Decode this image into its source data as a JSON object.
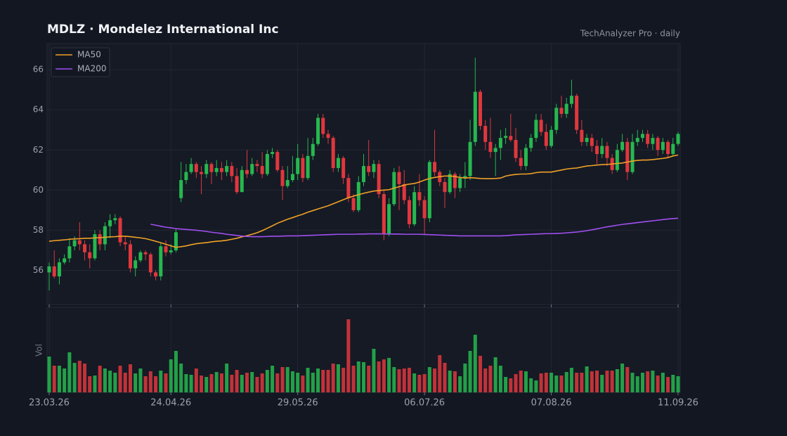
{
  "chart_data": {
    "type": "candlestick",
    "title": "MDLZ  ·  Mondelez International Inc",
    "subtitle": "TechAnalyzer Pro · daily",
    "categories": [
      "23.03.26",
      null,
      null,
      null,
      null,
      null,
      null,
      null,
      null,
      null,
      null,
      null,
      null,
      null,
      null,
      null,
      null,
      null,
      null,
      null,
      null,
      null,
      null,
      null,
      "24.04.26",
      null,
      null,
      null,
      null,
      null,
      null,
      null,
      null,
      null,
      null,
      null,
      null,
      null,
      null,
      null,
      null,
      null,
      null,
      null,
      null,
      null,
      null,
      null,
      null,
      "29.05.26",
      null,
      null,
      null,
      null,
      null,
      null,
      null,
      null,
      null,
      null,
      null,
      null,
      null,
      null,
      null,
      null,
      null,
      null,
      null,
      null,
      null,
      null,
      null,
      null,
      "06.07.26",
      null,
      null,
      null,
      null,
      null,
      null,
      null,
      null,
      null,
      null,
      null,
      null,
      null,
      null,
      null,
      null,
      null,
      null,
      null,
      null,
      null,
      null,
      null,
      null,
      "07.08.26",
      null,
      null,
      null,
      null,
      null,
      null,
      null,
      null,
      null,
      null,
      null,
      null,
      null,
      null,
      null,
      null,
      null,
      null,
      null,
      null,
      null,
      null,
      null,
      null,
      "11.09.26"
    ],
    "open": [
      55.9,
      56.2,
      55.7,
      56.4,
      56.6,
      57.2,
      57.5,
      57.3,
      56.9,
      56.6,
      57.8,
      57.3,
      58.2,
      58.5,
      58.6,
      57.4,
      57.3,
      56.1,
      56.5,
      56.9,
      56.8,
      55.9,
      55.7,
      57.2,
      56.9,
      57.0,
      59.6,
      60.5,
      60.9,
      61.3,
      60.9,
      60.8,
      61.3,
      60.9,
      61.1,
      60.9,
      61.2,
      60.7,
      59.9,
      61.0,
      60.8,
      61.3,
      61.2,
      60.8,
      61.8,
      61.9,
      61.0,
      60.2,
      60.5,
      60.8,
      61.6,
      60.6,
      61.7,
      62.3,
      63.6,
      62.8,
      62.6,
      61.1,
      61.6,
      60.6,
      59.6,
      59.0,
      60.4,
      61.2,
      60.9,
      61.3,
      59.8,
      57.8,
      59.3,
      60.9,
      60.3,
      59.5,
      58.3,
      59.9,
      59.5,
      58.6,
      61.4,
      60.9,
      60.4,
      59.9,
      60.8,
      60.1,
      60.6,
      60.7,
      62.4,
      64.9,
      63.2,
      62.4,
      61.9,
      62.1,
      62.6,
      62.7,
      62.5,
      61.6,
      61.2,
      62.1,
      62.6,
      63.5,
      62.9,
      62.2,
      63.0,
      64.1,
      63.8,
      64.3,
      64.7,
      63.0,
      62.4,
      62.6,
      62.2,
      61.8,
      62.2,
      61.6,
      61.0,
      62.0,
      62.4,
      60.9,
      62.4,
      62.6,
      62.8,
      62.3,
      62.6,
      62.0,
      62.4,
      61.8,
      62.3
    ],
    "high": [
      56.4,
      57.0,
      56.6,
      56.8,
      57.6,
      57.7,
      58.4,
      57.5,
      57.3,
      58.0,
      58.0,
      58.4,
      58.8,
      58.8,
      58.7,
      57.7,
      57.5,
      56.7,
      57.0,
      57.0,
      56.9,
      56.0,
      57.4,
      57.5,
      57.3,
      58.1,
      61.4,
      61.3,
      61.6,
      61.4,
      61.2,
      61.5,
      61.4,
      61.5,
      61.4,
      61.5,
      61.4,
      61.1,
      61.2,
      62.0,
      61.6,
      61.5,
      61.9,
      62.0,
      62.1,
      62.0,
      61.2,
      61.2,
      61.7,
      62.3,
      61.8,
      62.6,
      62.6,
      63.8,
      63.8,
      63.0,
      62.7,
      61.8,
      61.7,
      60.8,
      59.8,
      60.7,
      61.8,
      62.5,
      61.5,
      61.5,
      60.0,
      59.6,
      61.1,
      61.2,
      61.0,
      59.7,
      60.2,
      60.8,
      59.7,
      61.5,
      63.0,
      61.0,
      60.6,
      61.0,
      60.9,
      60.8,
      61.4,
      63.5,
      66.6,
      65.0,
      63.5,
      63.6,
      62.3,
      63.0,
      63.1,
      63.8,
      63.1,
      62.0,
      62.3,
      62.8,
      63.8,
      63.8,
      63.3,
      63.2,
      64.3,
      64.7,
      64.6,
      65.5,
      64.8,
      63.5,
      62.8,
      62.8,
      62.5,
      62.6,
      62.4,
      61.8,
      62.3,
      62.8,
      62.6,
      62.8,
      63.0,
      63.0,
      63.0,
      62.8,
      62.7,
      62.6,
      62.5,
      62.6,
      62.9
    ],
    "low": [
      55.0,
      55.6,
      55.3,
      56.3,
      56.4,
      57.0,
      57.0,
      56.5,
      56.1,
      56.5,
      57.0,
      57.0,
      57.6,
      58.3,
      57.2,
      57.0,
      55.9,
      55.7,
      56.4,
      56.5,
      55.7,
      55.5,
      55.5,
      56.7,
      56.8,
      56.9,
      59.4,
      60.3,
      60.8,
      60.6,
      59.8,
      60.6,
      60.3,
      60.7,
      60.5,
      60.7,
      60.4,
      59.8,
      59.9,
      60.6,
      60.7,
      60.9,
      60.6,
      60.7,
      61.6,
      60.9,
      59.5,
      60.1,
      60.4,
      60.5,
      60.4,
      60.5,
      61.5,
      62.2,
      62.6,
      62.3,
      60.9,
      60.9,
      60.3,
      59.4,
      58.9,
      58.9,
      60.2,
      60.7,
      60.6,
      59.6,
      57.5,
      57.7,
      59.2,
      59.0,
      59.3,
      58.1,
      58.2,
      59.2,
      57.8,
      58.4,
      60.7,
      60.2,
      59.1,
      59.8,
      59.6,
      59.9,
      60.1,
      60.5,
      62.2,
      63.0,
      62.0,
      61.6,
      60.7,
      61.5,
      62.3,
      62.4,
      61.4,
      61.0,
      61.0,
      61.9,
      62.4,
      62.7,
      62.0,
      62.1,
      62.8,
      63.6,
      63.6,
      64.1,
      62.8,
      62.2,
      62.2,
      61.9,
      61.3,
      61.6,
      61.2,
      60.8,
      60.9,
      61.9,
      60.5,
      60.8,
      62.2,
      62.4,
      62.1,
      62.0,
      61.7,
      61.8,
      61.6,
      61.7,
      62.2
    ],
    "close": [
      56.2,
      55.7,
      56.4,
      56.6,
      57.2,
      57.5,
      57.3,
      56.9,
      56.6,
      57.8,
      57.3,
      58.2,
      58.5,
      58.6,
      57.4,
      57.3,
      56.1,
      56.5,
      56.9,
      56.8,
      55.9,
      55.7,
      57.2,
      56.9,
      57.0,
      57.9,
      60.5,
      60.9,
      61.3,
      60.9,
      60.8,
      61.3,
      60.9,
      61.1,
      60.9,
      61.2,
      60.7,
      59.9,
      61.0,
      60.8,
      61.3,
      61.2,
      60.8,
      61.8,
      61.9,
      61.0,
      60.2,
      60.5,
      60.8,
      61.6,
      60.6,
      61.7,
      62.3,
      63.6,
      62.8,
      62.6,
      61.1,
      61.6,
      60.6,
      59.6,
      59.0,
      60.4,
      61.2,
      60.9,
      61.3,
      59.8,
      57.8,
      59.3,
      60.9,
      60.3,
      59.5,
      58.3,
      59.9,
      59.5,
      58.6,
      61.4,
      60.9,
      60.4,
      59.9,
      60.8,
      60.1,
      60.6,
      60.7,
      62.4,
      64.9,
      63.2,
      62.4,
      61.9,
      62.1,
      62.6,
      62.7,
      62.5,
      61.6,
      61.2,
      62.1,
      62.6,
      63.5,
      62.9,
      62.2,
      63.0,
      64.1,
      63.8,
      64.3,
      64.7,
      63.0,
      62.4,
      62.6,
      62.2,
      61.8,
      62.2,
      61.6,
      61.0,
      62.0,
      62.4,
      60.9,
      62.4,
      62.6,
      62.8,
      62.3,
      62.6,
      62.0,
      62.4,
      61.8,
      62.3,
      62.8
    ],
    "up_color": "#26b84f",
    "down_color": "#e0373d",
    "series": [
      {
        "name": "MA50",
        "color": "#f0a126",
        "values": [
          57.45,
          57.48,
          57.5,
          57.52,
          57.55,
          57.57,
          57.58,
          57.6,
          57.6,
          57.62,
          57.63,
          57.65,
          57.67,
          57.68,
          57.7,
          57.7,
          57.68,
          57.65,
          57.62,
          57.58,
          57.52,
          57.45,
          57.38,
          57.3,
          57.22,
          57.15,
          57.18,
          57.22,
          57.28,
          57.33,
          57.36,
          57.38,
          57.42,
          57.45,
          57.47,
          57.5,
          57.55,
          57.6,
          57.67,
          57.73,
          57.8,
          57.88,
          57.98,
          58.1,
          58.22,
          58.35,
          58.45,
          58.55,
          58.63,
          58.72,
          58.8,
          58.9,
          58.98,
          59.06,
          59.14,
          59.22,
          59.32,
          59.42,
          59.52,
          59.62,
          59.7,
          59.77,
          59.84,
          59.9,
          59.95,
          59.98,
          60.0,
          60.02,
          60.1,
          60.17,
          60.25,
          60.3,
          60.33,
          60.4,
          60.5,
          60.58,
          60.63,
          60.67,
          60.7,
          60.7,
          60.68,
          60.63,
          60.6,
          60.62,
          60.6,
          60.58,
          60.57,
          60.57,
          60.58,
          60.6,
          60.7,
          60.75,
          60.78,
          60.8,
          60.8,
          60.82,
          60.87,
          60.9,
          60.9,
          60.9,
          60.95,
          61.0,
          61.05,
          61.08,
          61.1,
          61.15,
          61.2,
          61.22,
          61.25,
          61.27,
          61.28,
          61.3,
          61.33,
          61.35,
          61.4,
          61.45,
          61.48,
          61.5,
          61.5,
          61.52,
          61.55,
          61.58,
          61.62,
          61.7,
          61.75
        ]
      },
      {
        "name": "MA200",
        "color": "#a04ff0",
        "values": [
          null,
          null,
          null,
          null,
          null,
          null,
          null,
          null,
          null,
          null,
          null,
          null,
          null,
          null,
          null,
          null,
          null,
          null,
          null,
          null,
          58.3,
          58.25,
          58.2,
          58.15,
          58.12,
          58.08,
          58.06,
          58.04,
          58.02,
          58.0,
          57.97,
          57.94,
          57.9,
          57.87,
          57.84,
          57.8,
          57.77,
          57.74,
          57.71,
          57.69,
          57.68,
          57.68,
          57.68,
          57.69,
          57.7,
          57.7,
          57.71,
          57.72,
          57.72,
          57.72,
          57.73,
          57.74,
          57.75,
          57.76,
          57.77,
          57.78,
          57.79,
          57.8,
          57.8,
          57.8,
          57.8,
          57.81,
          57.81,
          57.82,
          57.82,
          57.82,
          57.82,
          57.81,
          57.81,
          57.81,
          57.8,
          57.8,
          57.8,
          57.8,
          57.79,
          57.78,
          57.77,
          57.76,
          57.75,
          57.74,
          57.73,
          57.72,
          57.72,
          57.72,
          57.72,
          57.72,
          57.72,
          57.72,
          57.72,
          57.72,
          57.73,
          57.75,
          57.77,
          57.78,
          57.79,
          57.8,
          57.81,
          57.82,
          57.83,
          57.83,
          57.84,
          57.85,
          57.87,
          57.89,
          57.91,
          57.94,
          57.98,
          58.02,
          58.07,
          58.12,
          58.17,
          58.21,
          58.25,
          58.29,
          58.32,
          58.35,
          58.38,
          58.41,
          58.44,
          58.47,
          58.5,
          58.53,
          58.56,
          58.58,
          58.6
        ]
      }
    ],
    "volume": {
      "label": "Vol",
      "ylim": [
        0,
        121
      ],
      "values": [
        51,
        38,
        38,
        34,
        57,
        42,
        45,
        41,
        23,
        24,
        38,
        34,
        31,
        28,
        38,
        28,
        40,
        27,
        34,
        23,
        30,
        23,
        31,
        27,
        47,
        59,
        41,
        26,
        25,
        34,
        24,
        22,
        26,
        29,
        27,
        41,
        25,
        32,
        25,
        28,
        29,
        22,
        27,
        32,
        38,
        27,
        36,
        36,
        30,
        28,
        24,
        35,
        28,
        34,
        32,
        32,
        41,
        40,
        35,
        104,
        38,
        44,
        43,
        38,
        62,
        44,
        47,
        49,
        36,
        33,
        34,
        35,
        27,
        25,
        26,
        36,
        34,
        53,
        42,
        31,
        30,
        23,
        41,
        59,
        82,
        52,
        34,
        38,
        50,
        38,
        22,
        20,
        26,
        31,
        30,
        20,
        17,
        27,
        28,
        28,
        24,
        24,
        29,
        35,
        28,
        28,
        37,
        30,
        31,
        25,
        31,
        31,
        33,
        41,
        36,
        28,
        23,
        28,
        30,
        31,
        24,
        28,
        22,
        25,
        23
      ]
    },
    "ylim": [
      54.3,
      67.3
    ],
    "yticks": [
      56,
      58,
      60,
      62,
      64,
      66
    ],
    "grid": true,
    "legend": "upper left"
  }
}
